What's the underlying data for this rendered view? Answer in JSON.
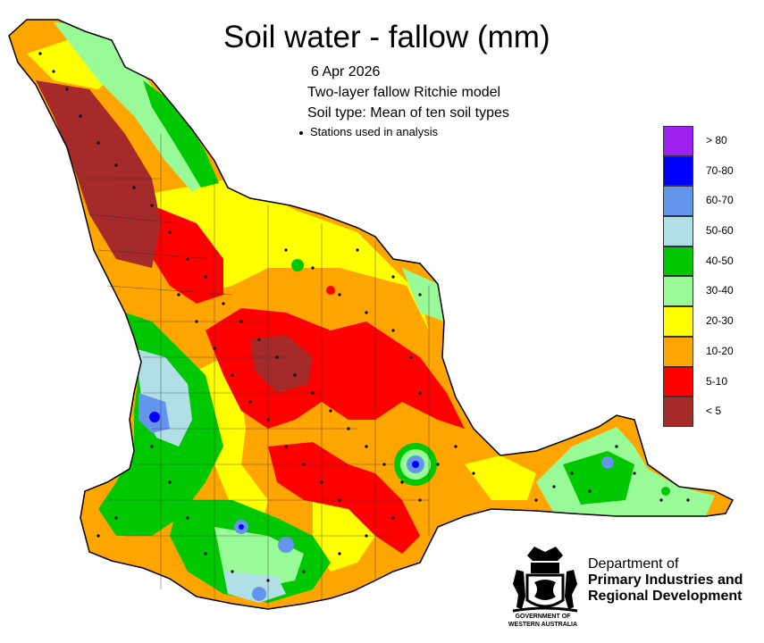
{
  "title": "Soil water - fallow (mm)",
  "date": "6 Apr 2026",
  "model": "Two-layer fallow Ritchie model",
  "soil_type": "Soil type: Mean of ten soil types",
  "stations_label": "Stations used in analysis",
  "legend": [
    {
      "label": "> 80",
      "color": "#a020f0"
    },
    {
      "label": "70-80",
      "color": "#0000ff"
    },
    {
      "label": "60-70",
      "color": "#6495ed"
    },
    {
      "label": "50-60",
      "color": "#b0e0e6"
    },
    {
      "label": "40-50",
      "color": "#00c800"
    },
    {
      "label": "30-40",
      "color": "#98fb98"
    },
    {
      "label": "20-30",
      "color": "#ffff00"
    },
    {
      "label": "10-20",
      "color": "#ffa500"
    },
    {
      "label": "5-10",
      "color": "#ff0000"
    },
    {
      "label": "< 5",
      "color": "#a52a2a"
    }
  ],
  "department": {
    "line1": "Department of",
    "line2": "Primary Industries and",
    "line3": "Regional Development"
  },
  "government": {
    "line1": "GOVERNMENT OF",
    "line2": "WESTERN AUSTRALIA"
  }
}
